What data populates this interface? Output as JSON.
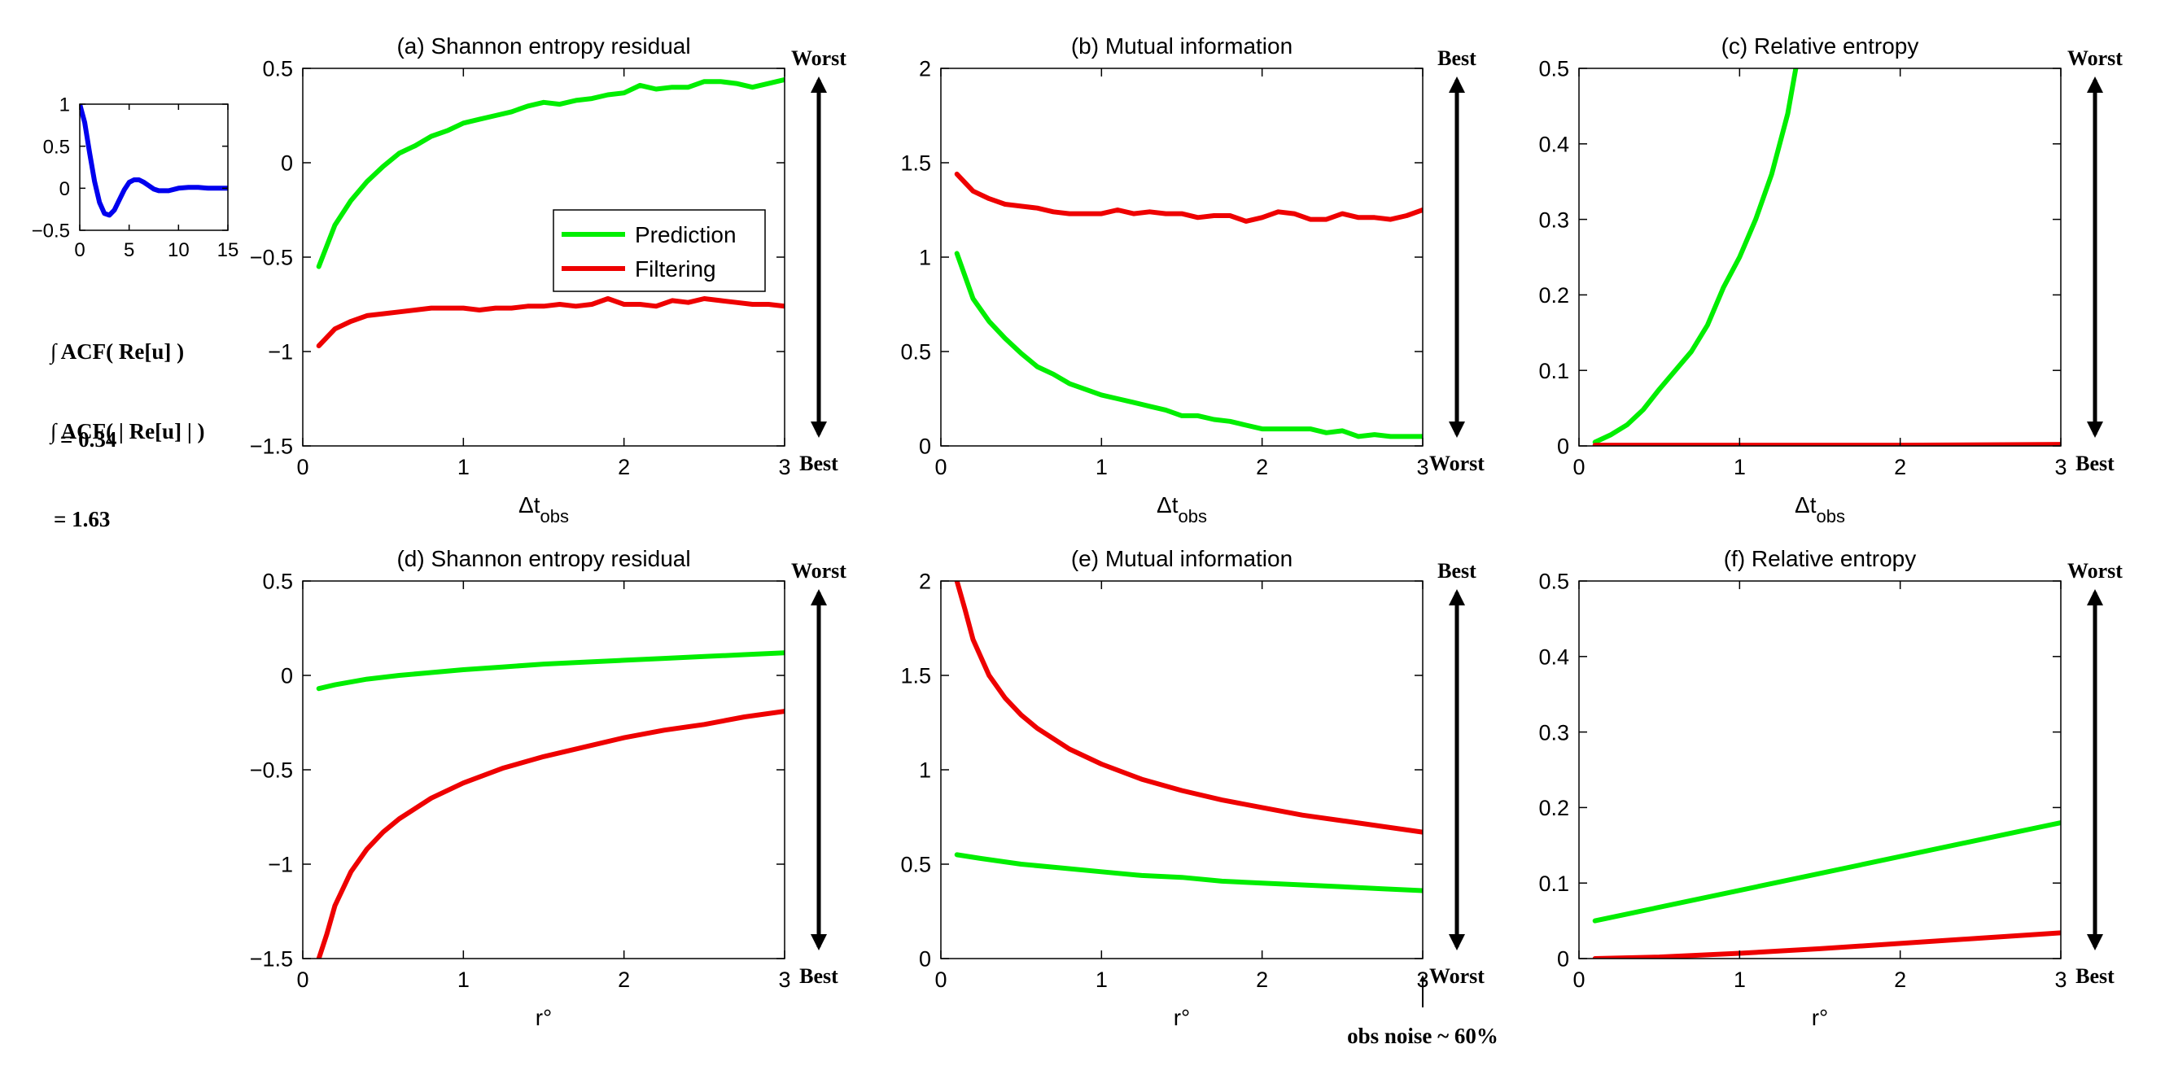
{
  "figure": {
    "acf_notes": [
      {
        "line1": "∫ ACF( Re[u] )",
        "line2": "= 0.34"
      },
      {
        "line1": "∫ ACF( | Re[u] | )",
        "line2": "= 1.63"
      }
    ],
    "noise_note": "obs noise ~ 60%"
  },
  "colors": {
    "prediction": "#00ee00",
    "filtering": "#ee0000",
    "acf": "#0000ee",
    "axis": "#000000"
  },
  "chart_data": [
    {
      "id": "inset",
      "type": "line",
      "title": "",
      "xlim": [
        0,
        15
      ],
      "ylim": [
        -0.5,
        1
      ],
      "xticks": [
        0,
        5,
        10,
        15
      ],
      "xticklabels": [
        "0",
        "5",
        "10",
        "15"
      ],
      "yticks": [
        -0.5,
        0,
        0.5,
        1
      ],
      "yticklabels": [
        "−0.5",
        "0",
        "0.5",
        "1"
      ],
      "series": [
        {
          "name": "ACF",
          "color": "#0000ee",
          "x": [
            0,
            0.5,
            1,
            1.5,
            2,
            2.5,
            3,
            3.5,
            4,
            4.5,
            5,
            5.5,
            6,
            6.5,
            7,
            7.5,
            8,
            9,
            10,
            11,
            12,
            13,
            14,
            15
          ],
          "y": [
            1,
            0.78,
            0.42,
            0.08,
            -0.17,
            -0.3,
            -0.32,
            -0.26,
            -0.14,
            -0.02,
            0.07,
            0.1,
            0.1,
            0.07,
            0.03,
            -0.01,
            -0.03,
            -0.03,
            0.0,
            0.01,
            0.01,
            0.0,
            0.0,
            0.0
          ]
        }
      ]
    },
    {
      "id": "a",
      "type": "line",
      "title": "(a)  Shannon entropy residual",
      "xlabel_main": "Δt",
      "xlabel_sub": "obs",
      "xlim": [
        0,
        3
      ],
      "ylim": [
        -1.5,
        0.5
      ],
      "xticks": [
        0,
        1,
        2,
        3
      ],
      "xticklabels": [
        "0",
        "1",
        "2",
        "3"
      ],
      "yticks": [
        -1.5,
        -1,
        -0.5,
        0,
        0.5
      ],
      "yticklabels": [
        "−1.5",
        "−1",
        "−0.5",
        "0",
        "0.5"
      ],
      "arrow": {
        "top": "Worst",
        "bottom": "Best"
      },
      "legend": {
        "position": "center",
        "entries": [
          "Prediction",
          "Filtering"
        ]
      },
      "series": [
        {
          "name": "Prediction",
          "color": "#00ee00",
          "x": [
            0.1,
            0.2,
            0.3,
            0.4,
            0.5,
            0.6,
            0.7,
            0.8,
            0.9,
            1.0,
            1.1,
            1.2,
            1.3,
            1.4,
            1.5,
            1.6,
            1.7,
            1.8,
            1.9,
            2.0,
            2.1,
            2.2,
            2.3,
            2.4,
            2.5,
            2.6,
            2.7,
            2.8,
            2.9,
            3.0
          ],
          "y": [
            -0.55,
            -0.33,
            -0.2,
            -0.1,
            -0.02,
            0.05,
            0.09,
            0.14,
            0.17,
            0.21,
            0.23,
            0.25,
            0.27,
            0.3,
            0.32,
            0.31,
            0.33,
            0.34,
            0.36,
            0.37,
            0.41,
            0.39,
            0.4,
            0.4,
            0.43,
            0.43,
            0.42,
            0.4,
            0.42,
            0.44
          ]
        },
        {
          "name": "Filtering",
          "color": "#ee0000",
          "x": [
            0.1,
            0.2,
            0.3,
            0.4,
            0.5,
            0.6,
            0.7,
            0.8,
            0.9,
            1.0,
            1.1,
            1.2,
            1.3,
            1.4,
            1.5,
            1.6,
            1.7,
            1.8,
            1.9,
            2.0,
            2.1,
            2.2,
            2.3,
            2.4,
            2.5,
            2.6,
            2.7,
            2.8,
            2.9,
            3.0
          ],
          "y": [
            -0.97,
            -0.88,
            -0.84,
            -0.81,
            -0.8,
            -0.79,
            -0.78,
            -0.77,
            -0.77,
            -0.77,
            -0.78,
            -0.77,
            -0.77,
            -0.76,
            -0.76,
            -0.75,
            -0.76,
            -0.75,
            -0.72,
            -0.75,
            -0.75,
            -0.76,
            -0.73,
            -0.74,
            -0.72,
            -0.73,
            -0.74,
            -0.75,
            -0.75,
            -0.76
          ]
        }
      ]
    },
    {
      "id": "b",
      "type": "line",
      "title": "(b)  Mutual information",
      "xlabel_main": "Δt",
      "xlabel_sub": "obs",
      "xlim": [
        0,
        3
      ],
      "ylim": [
        0,
        2
      ],
      "xticks": [
        0,
        1,
        2,
        3
      ],
      "xticklabels": [
        "0",
        "1",
        "2",
        "3"
      ],
      "yticks": [
        0,
        0.5,
        1,
        1.5,
        2
      ],
      "yticklabels": [
        "0",
        "0.5",
        "1",
        "1.5",
        "2"
      ],
      "arrow": {
        "top": "Best",
        "bottom": "Worst"
      },
      "series": [
        {
          "name": "Prediction",
          "color": "#00ee00",
          "x": [
            0.1,
            0.2,
            0.3,
            0.4,
            0.5,
            0.6,
            0.7,
            0.8,
            0.9,
            1.0,
            1.1,
            1.2,
            1.3,
            1.4,
            1.5,
            1.6,
            1.7,
            1.8,
            1.9,
            2.0,
            2.1,
            2.2,
            2.3,
            2.4,
            2.5,
            2.6,
            2.7,
            2.8,
            2.9,
            3.0
          ],
          "y": [
            1.02,
            0.78,
            0.66,
            0.57,
            0.49,
            0.42,
            0.38,
            0.33,
            0.3,
            0.27,
            0.25,
            0.23,
            0.21,
            0.19,
            0.16,
            0.16,
            0.14,
            0.13,
            0.11,
            0.09,
            0.09,
            0.09,
            0.09,
            0.07,
            0.08,
            0.05,
            0.06,
            0.05,
            0.05,
            0.05
          ]
        },
        {
          "name": "Filtering",
          "color": "#ee0000",
          "x": [
            0.1,
            0.2,
            0.3,
            0.4,
            0.5,
            0.6,
            0.7,
            0.8,
            0.9,
            1.0,
            1.1,
            1.2,
            1.3,
            1.4,
            1.5,
            1.6,
            1.7,
            1.8,
            1.9,
            2.0,
            2.1,
            2.2,
            2.3,
            2.4,
            2.5,
            2.6,
            2.7,
            2.8,
            2.9,
            3.0
          ],
          "y": [
            1.44,
            1.35,
            1.31,
            1.28,
            1.27,
            1.26,
            1.24,
            1.23,
            1.23,
            1.23,
            1.25,
            1.23,
            1.24,
            1.23,
            1.23,
            1.21,
            1.22,
            1.22,
            1.19,
            1.21,
            1.24,
            1.23,
            1.2,
            1.2,
            1.23,
            1.21,
            1.21,
            1.2,
            1.22,
            1.25
          ]
        }
      ]
    },
    {
      "id": "c",
      "type": "line",
      "title": "(c)  Relative entropy",
      "xlabel_main": "Δt",
      "xlabel_sub": "obs",
      "xlim": [
        0,
        3
      ],
      "ylim": [
        0,
        0.5
      ],
      "xticks": [
        0,
        1,
        2,
        3
      ],
      "xticklabels": [
        "0",
        "1",
        "2",
        "3"
      ],
      "yticks": [
        0,
        0.1,
        0.2,
        0.3,
        0.4,
        0.5
      ],
      "yticklabels": [
        "0",
        "0.1",
        "0.2",
        "0.3",
        "0.4",
        "0.5"
      ],
      "arrow": {
        "top": "Worst",
        "bottom": "Best"
      },
      "series": [
        {
          "name": "Prediction",
          "color": "#00ee00",
          "x": [
            0.1,
            0.2,
            0.3,
            0.4,
            0.5,
            0.6,
            0.7,
            0.8,
            0.9,
            1.0,
            1.1,
            1.2,
            1.3,
            1.35
          ],
          "y": [
            0.005,
            0.015,
            0.028,
            0.048,
            0.075,
            0.1,
            0.125,
            0.16,
            0.21,
            0.25,
            0.3,
            0.36,
            0.44,
            0.5
          ]
        },
        {
          "name": "Filtering",
          "color": "#ee0000",
          "x": [
            0.1,
            1.0,
            2.0,
            3.0
          ],
          "y": [
            0.001,
            0.001,
            0.001,
            0.002
          ]
        }
      ]
    },
    {
      "id": "d",
      "type": "line",
      "title": "(d)  Shannon entropy residual",
      "xlabel_main": "r°",
      "xlabel_sub": "",
      "xlim": [
        0,
        3
      ],
      "ylim": [
        -1.5,
        0.5
      ],
      "xticks": [
        0,
        1,
        2,
        3
      ],
      "xticklabels": [
        "0",
        "1",
        "2",
        "3"
      ],
      "yticks": [
        -1.5,
        -1,
        -0.5,
        0,
        0.5
      ],
      "yticklabels": [
        "−1.5",
        "−1",
        "−0.5",
        "0",
        "0.5"
      ],
      "arrow": {
        "top": "Worst",
        "bottom": "Best"
      },
      "series": [
        {
          "name": "Prediction",
          "color": "#00ee00",
          "x": [
            0.1,
            0.2,
            0.4,
            0.6,
            0.8,
            1.0,
            1.25,
            1.5,
            1.75,
            2.0,
            2.25,
            2.5,
            2.75,
            3.0
          ],
          "y": [
            -0.07,
            -0.05,
            -0.02,
            0.0,
            0.015,
            0.03,
            0.045,
            0.06,
            0.07,
            0.08,
            0.09,
            0.1,
            0.11,
            0.12
          ]
        },
        {
          "name": "Filtering",
          "color": "#ee0000",
          "x": [
            0.1,
            0.15,
            0.2,
            0.3,
            0.4,
            0.5,
            0.6,
            0.8,
            1.0,
            1.25,
            1.5,
            1.75,
            2.0,
            2.25,
            2.5,
            2.75,
            3.0
          ],
          "y": [
            -1.5,
            -1.37,
            -1.22,
            -1.04,
            -0.92,
            -0.83,
            -0.76,
            -0.65,
            -0.57,
            -0.49,
            -0.43,
            -0.38,
            -0.33,
            -0.29,
            -0.26,
            -0.22,
            -0.19
          ]
        }
      ]
    },
    {
      "id": "e",
      "type": "line",
      "title": "(e)  Mutual information",
      "xlabel_main": "r°",
      "xlabel_sub": "",
      "xlim": [
        0,
        3
      ],
      "ylim": [
        0,
        2
      ],
      "xticks": [
        0,
        1,
        2,
        3
      ],
      "xticklabels": [
        "0",
        "1",
        "2",
        "3"
      ],
      "yticks": [
        0,
        0.5,
        1,
        1.5,
        2
      ],
      "yticklabels": [
        "0",
        "0.5",
        "1",
        "1.5",
        "2"
      ],
      "arrow": {
        "top": "Best",
        "bottom": "Worst"
      },
      "series": [
        {
          "name": "Prediction",
          "color": "#00ee00",
          "x": [
            0.1,
            0.25,
            0.5,
            0.75,
            1.0,
            1.25,
            1.5,
            1.75,
            2.0,
            2.25,
            2.5,
            2.75,
            3.0
          ],
          "y": [
            0.55,
            0.53,
            0.5,
            0.48,
            0.46,
            0.44,
            0.43,
            0.41,
            0.4,
            0.39,
            0.38,
            0.37,
            0.36
          ]
        },
        {
          "name": "Filtering",
          "color": "#ee0000",
          "x": [
            0.1,
            0.15,
            0.2,
            0.3,
            0.4,
            0.5,
            0.6,
            0.8,
            1.0,
            1.25,
            1.5,
            1.75,
            2.0,
            2.25,
            2.5,
            2.75,
            3.0
          ],
          "y": [
            2.0,
            1.85,
            1.69,
            1.5,
            1.38,
            1.29,
            1.22,
            1.11,
            1.03,
            0.95,
            0.89,
            0.84,
            0.8,
            0.76,
            0.73,
            0.7,
            0.67
          ]
        }
      ]
    },
    {
      "id": "f",
      "type": "line",
      "title": "(f)  Relative entropy",
      "xlabel_main": "r°",
      "xlabel_sub": "",
      "xlim": [
        0,
        3
      ],
      "ylim": [
        0,
        0.5
      ],
      "xticks": [
        0,
        1,
        2,
        3
      ],
      "xticklabels": [
        "0",
        "1",
        "2",
        "3"
      ],
      "yticks": [
        0,
        0.1,
        0.2,
        0.3,
        0.4,
        0.5
      ],
      "yticklabels": [
        "0",
        "0.1",
        "0.2",
        "0.3",
        "0.4",
        "0.5"
      ],
      "arrow": {
        "top": "Worst",
        "bottom": "Best"
      },
      "series": [
        {
          "name": "Prediction",
          "color": "#00ee00",
          "x": [
            0.1,
            3.0
          ],
          "y": [
            0.05,
            0.18
          ]
        },
        {
          "name": "Filtering",
          "color": "#ee0000",
          "x": [
            0.1,
            0.5,
            1.0,
            1.5,
            2.0,
            2.5,
            3.0
          ],
          "y": [
            0.0,
            0.002,
            0.007,
            0.013,
            0.02,
            0.027,
            0.034
          ]
        }
      ]
    }
  ]
}
